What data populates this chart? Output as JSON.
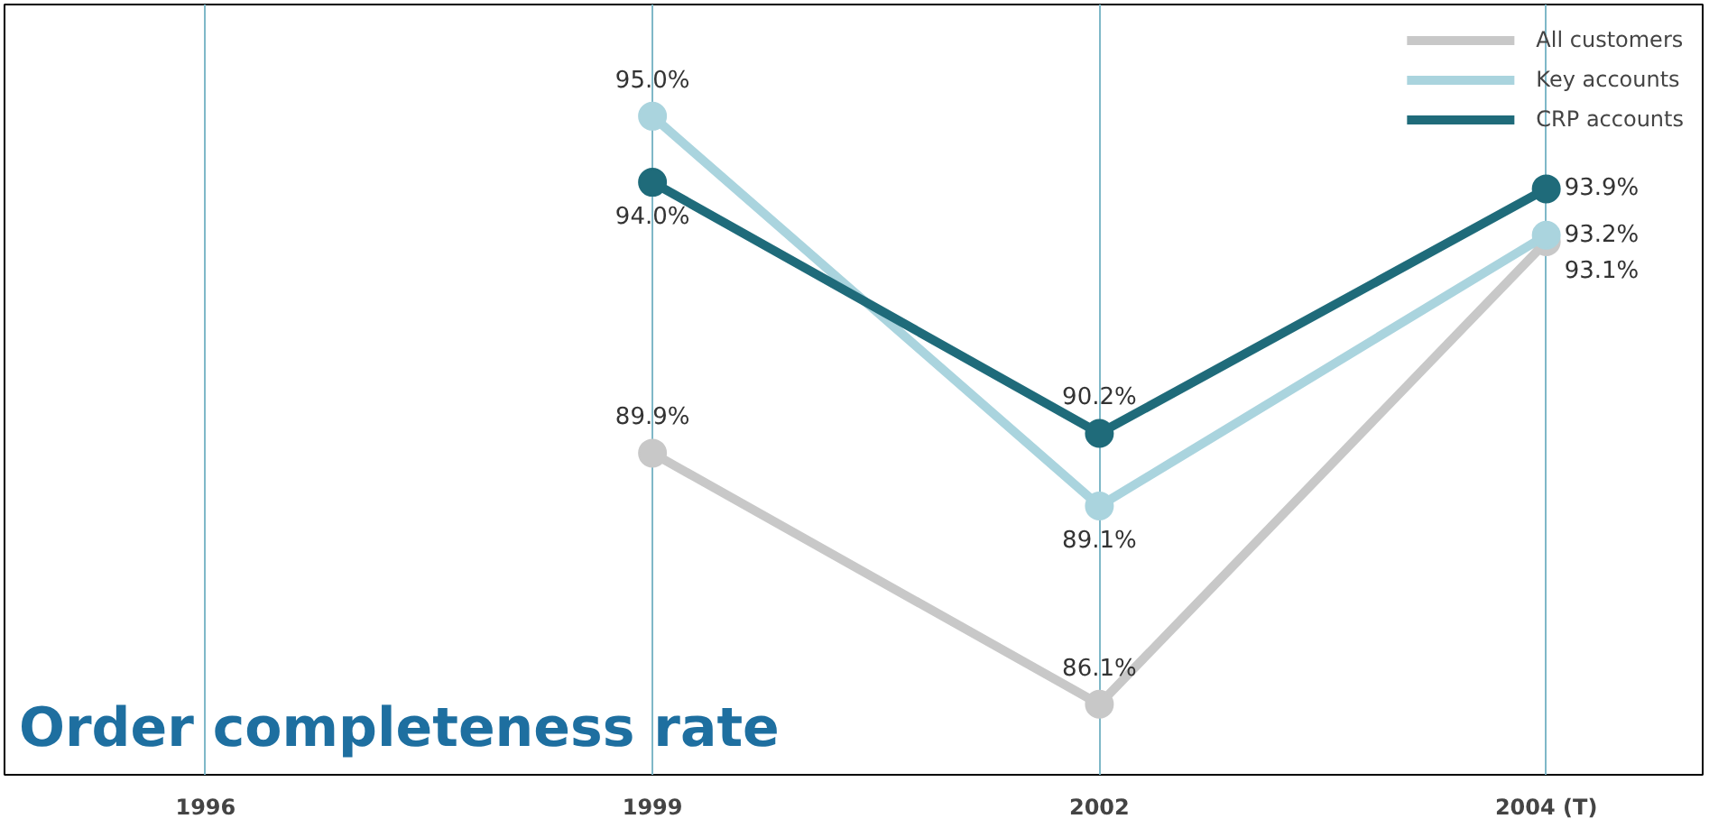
{
  "chart_data": {
    "type": "line",
    "title": "Order completeness rate",
    "categories": [
      "1996",
      "1999",
      "2002",
      "2004 (T)"
    ],
    "series": [
      {
        "name": "All customers",
        "color": "#c8c8c8",
        "values": [
          null,
          89.9,
          86.1,
          93.1
        ],
        "value_labels": [
          null,
          "89.9%",
          "86.1%",
          "93.1%"
        ]
      },
      {
        "name": "Key accounts",
        "color": "#aad4de",
        "values": [
          null,
          95.0,
          89.1,
          93.2
        ],
        "value_labels": [
          null,
          "95.0%",
          "89.1%",
          "93.2%"
        ]
      },
      {
        "name": "CRP accounts",
        "color": "#1f6b7a",
        "values": [
          null,
          94.0,
          90.2,
          93.9
        ],
        "value_labels": [
          null,
          "94.0%",
          "90.2%",
          "93.9%"
        ]
      }
    ],
    "grid": "x",
    "legend": "top right",
    "marker": "circle",
    "line_style": "solid",
    "tick_labels": "x"
  }
}
